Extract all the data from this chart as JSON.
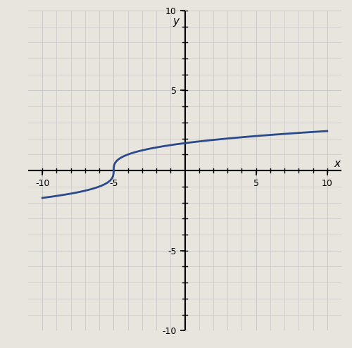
{
  "title": "",
  "xlabel": "x",
  "ylabel": "y",
  "xlim": [
    -11,
    11
  ],
  "ylim": [
    -10,
    10
  ],
  "xticks": [
    -10,
    -5,
    5,
    10
  ],
  "yticks": [
    -10,
    -5,
    5,
    10
  ],
  "curve_color": "#2b4a8b",
  "curve_linewidth": 2.0,
  "grid_color": "#c8c8c8",
  "grid_linewidth": 0.7,
  "background_color": "#e8e4de",
  "x_start": -10,
  "x_end": 10,
  "fig_width": 5.0,
  "fig_height": 4.94,
  "dpi": 100
}
